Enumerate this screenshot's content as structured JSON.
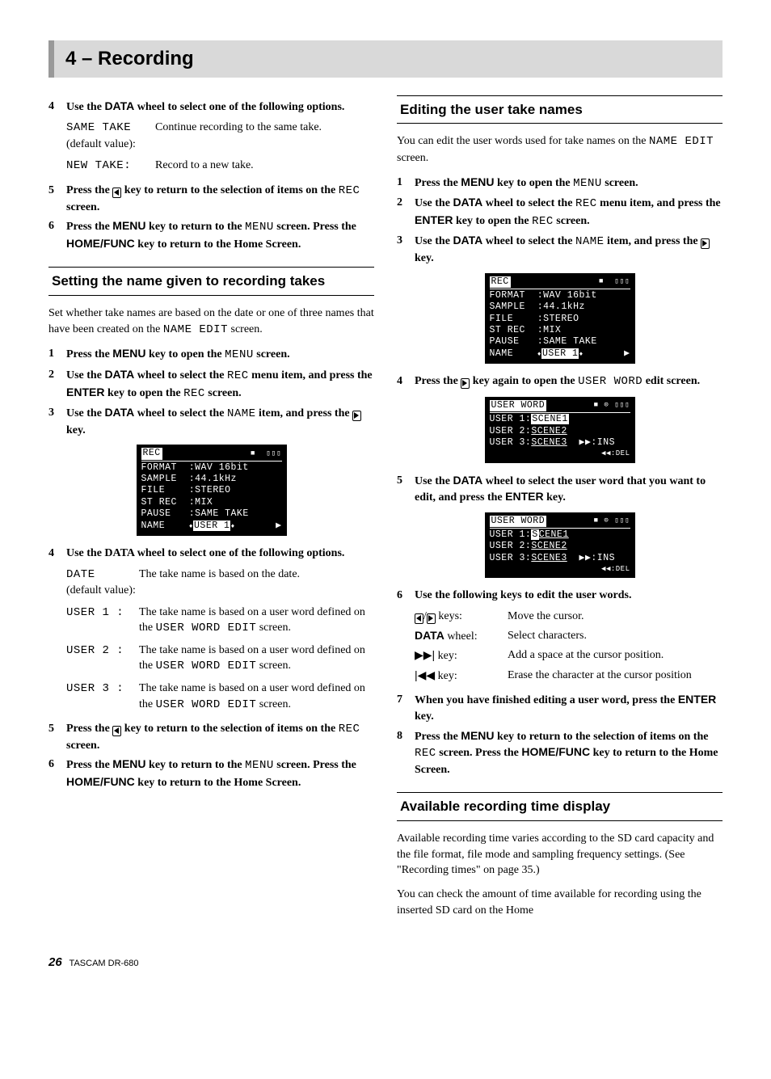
{
  "header": {
    "title": "4 – Recording"
  },
  "footer": {
    "page": "26",
    "product": "TASCAM  DR-680"
  },
  "left": {
    "step4a": "Use the DATA wheel to select one of the following options.",
    "opts_a": [
      {
        "k": "SAME TAKE",
        "k2": "(default value):",
        "v": "Continue recording to the same take."
      },
      {
        "k": "NEW TAKE:",
        "k2": "",
        "v": "Record to a new take."
      }
    ],
    "step5a_pre": "Press the ",
    "step5a_mid": " key to return to the selection of items on the ",
    "step5a_rec": "REC",
    "step5a_post": " screen.",
    "step6a": "Press the MENU key to return to the MENU screen. Press the HOME/FUNC key to return to the Home Screen.",
    "sect1": "Setting the name given to recording takes",
    "sect1_intro": "Set whether take names are based on the date or one of three names that have been created on the NAME EDIT screen.",
    "s1_1": "Press the MENU key to open the MENU screen.",
    "s1_2": "Use the DATA wheel to select the REC menu item, and press the ENTER key to open the REC screen.",
    "s1_3_pre": "Use the DATA wheel to select the NAME item, and press the ",
    "s1_3_post": " key.",
    "lcd1_title": "REC",
    "lcd1_rows": [
      "FORMAT  :WAV 16bit",
      "SAMPLE  :44.1kHz",
      "FILE    :STEREO",
      "ST REC  :MIX",
      "PAUSE   :SAME TAKE"
    ],
    "lcd1_name": "NAME",
    "lcd1_name_val": "USER 1",
    "s1_4": "Use the DATA wheel to select one of the following options.",
    "opts_b": [
      {
        "k": "DATE",
        "k2": "(default value):",
        "v": "The take name is based on the date."
      },
      {
        "k": "USER 1 :",
        "k2": "",
        "v": "The take name is based on a user word defined on the USER WORD EDIT screen."
      },
      {
        "k": "USER 2 :",
        "k2": "",
        "v": "The take name is based on a user word defined on the USER WORD EDIT screen."
      },
      {
        "k": "USER 3 :",
        "k2": "",
        "v": "The take name is based on a user word defined on the USER WORD EDIT screen."
      }
    ],
    "s1_5_pre": "Press the ",
    "s1_5_mid": " key to return to the selection of items on the ",
    "s1_5_rec": "REC",
    "s1_5_post": " screen.",
    "s1_6": "Press the MENU key to return to the MENU screen. Press the HOME/FUNC key to return to the Home Screen."
  },
  "right": {
    "sect2": "Editing the user take names",
    "sect2_intro": "You can edit the user words used for take names on the NAME EDIT screen.",
    "s2_1": "Press the MENU key to open the MENU screen.",
    "s2_2": "Use the DATA wheel to select the REC menu item, and press the ENTER key to open the REC screen.",
    "s2_3_pre": "Use the DATA wheel to select the NAME item, and press the ",
    "s2_3_post": " key.",
    "s2_4_pre": "Press the ",
    "s2_4_mid": " key again to open the ",
    "s2_4_uw": "USER WORD",
    "s2_4_post": " edit screen.",
    "lcd_uw_title": "USER WORD",
    "lcd_uw_rows": [
      {
        "label": "USER 1:",
        "val": "SCENE1",
        "inv": true
      },
      {
        "label": "USER 2:",
        "val": "SCENE2",
        "inv": false
      },
      {
        "label": "USER 3:",
        "val": "SCENE3",
        "inv": false
      }
    ],
    "lcd_uw_foot1": "▶▶:INS",
    "lcd_uw_foot2": "◀◀:DEL",
    "s2_5": "Use the DATA wheel to select the user word that you want to edit, and press the ENTER key.",
    "lcd_uw2_row1": {
      "label": "USER 1:",
      "prefix": "S",
      "rest": "CENE1"
    },
    "s2_6": "Use the following keys to edit the user words.",
    "keys": [
      {
        "k": "◁/▷ keys:",
        "v": "Move the cursor.",
        "style": "tri"
      },
      {
        "k": "DATA wheel:",
        "v": "Select characters.",
        "style": "bold"
      },
      {
        "k": "▶▶| key:",
        "v": "Add a space at the cursor position.",
        "style": "sym"
      },
      {
        "k": "|◀◀ key:",
        "v": "Erase the character at the cursor position",
        "style": "sym"
      }
    ],
    "s2_7": "When you have finished editing a user word, press the ENTER key.",
    "s2_8": "Press the MENU key to return to the selection of items on the REC screen. Press the HOME/FUNC key to return to the Home Screen.",
    "sect3": "Available recording time display",
    "sect3_p1": "Available recording time varies according to the SD card capacity and the file format, file mode and sampling frequency settings. (See \"Recording times\" on page 35.)",
    "sect3_p2": "You can check the amount of time available for recording using the inserted SD card on the Home"
  }
}
